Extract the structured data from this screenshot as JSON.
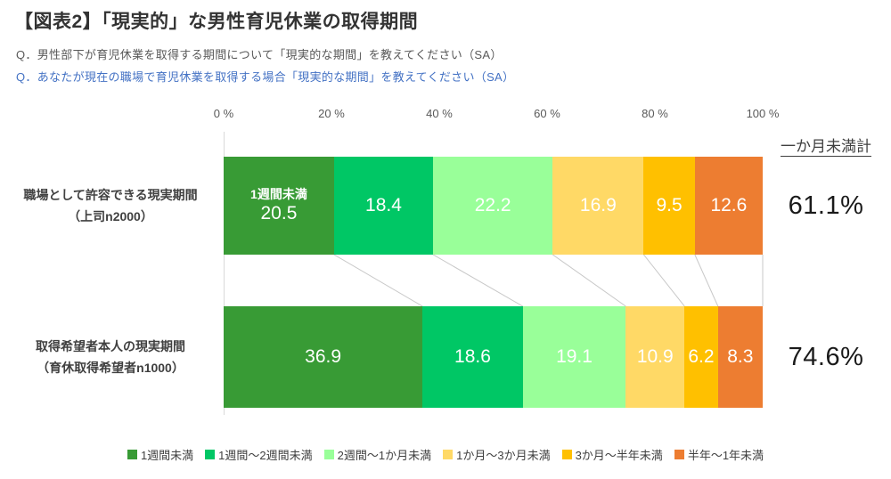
{
  "title": "【図表2】「現実的」な男性育児休業の取得期間",
  "questions": [
    {
      "text": "Q．男性部下が育児休業を取得する期間について「現実的な期間」を教えてください（SA）"
    },
    {
      "text": "Q．あなたが現在の職場で育児休業を取得する場合「現実的な期間」を教えてください（SA）"
    }
  ],
  "chart_data": {
    "type": "bar",
    "orientation": "horizontal",
    "stacked": true,
    "xlim": [
      0,
      100
    ],
    "x_ticks": [
      "0 %",
      "20 %",
      "40 %",
      "60 %",
      "80 %",
      "100 %"
    ],
    "grid": false,
    "legend_position": "bottom",
    "right_column_header": "一か月未満計",
    "categories": [
      "職場として許容できる現実期間（上司n2000）",
      "取得希望者本人の現実期間（育休取得希望者n1000）"
    ],
    "segment_names": [
      "1週間未満",
      "1週間～2週間未満",
      "2週間～1か月未満",
      "1か月～3か月未満",
      "3か月～半年未満",
      "半年～1年未満"
    ],
    "segment_colors": [
      "#389b35",
      "#00c765",
      "#99ff99",
      "#ffd966",
      "#ffc000",
      "#ed7d31"
    ],
    "rows": [
      {
        "label_line1": "職場として許容できる現実期間",
        "label_line2": "（上司n2000）",
        "values": [
          20.5,
          18.4,
          22.2,
          16.9,
          9.5,
          12.6
        ],
        "first_segment_inline_label": "1週間未満",
        "total_under_one_month": "61.1%"
      },
      {
        "label_line1": "取得希望者本人の現実期間",
        "label_line2": "（育休取得希望者n1000）",
        "values": [
          36.9,
          18.6,
          19.1,
          10.9,
          6.2,
          8.3
        ],
        "first_segment_inline_label": "",
        "total_under_one_month": "74.6%"
      }
    ]
  },
  "legend": {
    "items": [
      {
        "label": "1週間未満",
        "color": "#389b35"
      },
      {
        "label": "1週間～2週間未満",
        "color": "#00c765"
      },
      {
        "label": "2週間～1か月未満",
        "color": "#99ff99"
      },
      {
        "label": "1か月～3か月未満",
        "color": "#ffd966"
      },
      {
        "label": "3か月～半年未満",
        "color": "#ffc000"
      },
      {
        "label": "半年～1年未満",
        "color": "#ed7d31"
      }
    ]
  },
  "colors": {
    "title": "#333333",
    "question1": "#595959",
    "question2": "#4472c4",
    "axis_text": "#595959",
    "connector": "#c8c8c8"
  }
}
